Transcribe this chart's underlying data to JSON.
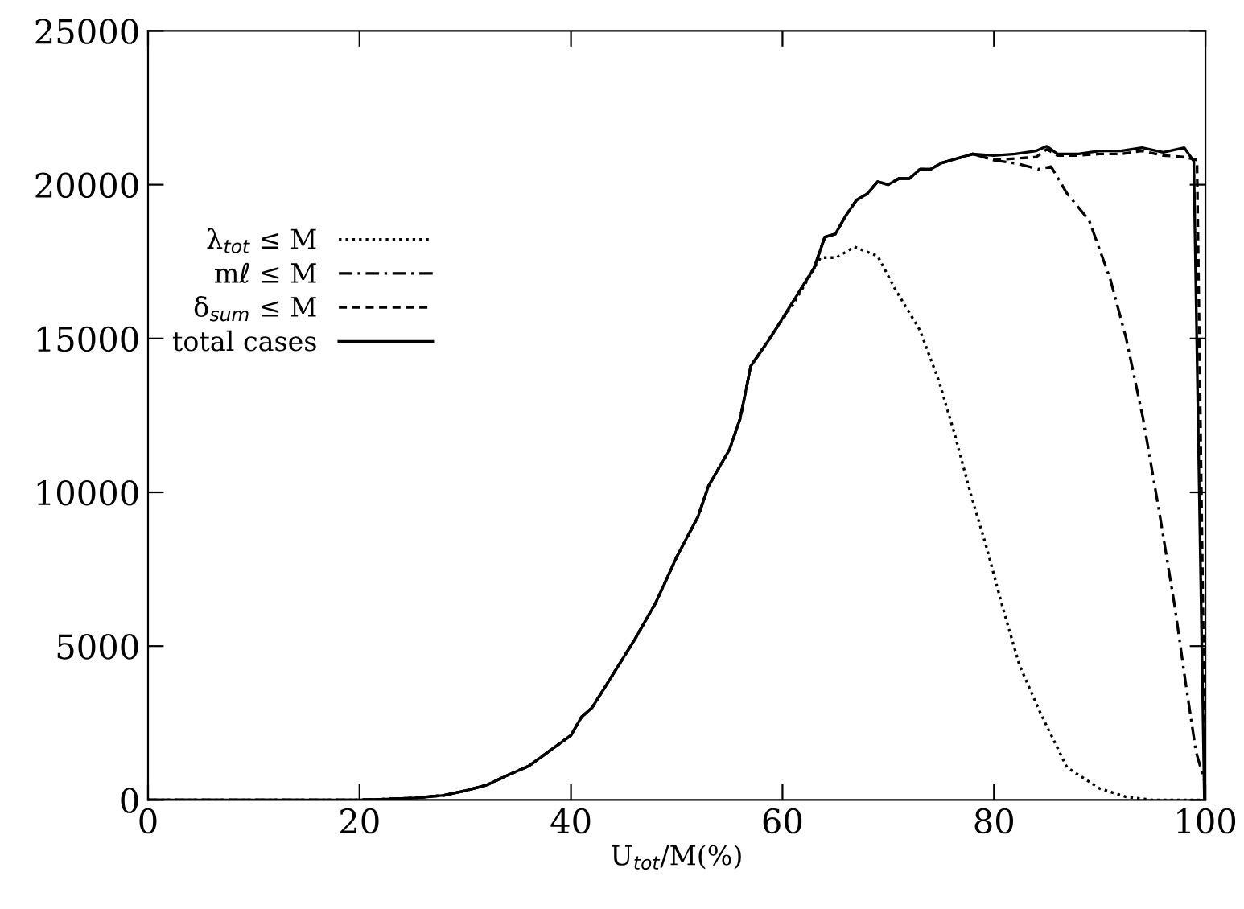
{
  "chart_data": {
    "type": "line",
    "xlabel": "U$_{tot}$/M(%)",
    "xlim": [
      0,
      100
    ],
    "ylim": [
      0,
      25000
    ],
    "xticks": [
      0,
      20,
      40,
      60,
      80,
      100
    ],
    "yticks": [
      0,
      5000,
      10000,
      15000,
      20000,
      25000
    ],
    "grid": false,
    "legend": "left",
    "marker": "none",
    "series": [
      {
        "name": "λ$_{tot}$ ≤ M",
        "color": "#000000",
        "line_style": "dotted",
        "x": [
          0,
          20,
          22,
          25,
          28,
          30,
          32,
          34,
          36,
          38,
          40,
          41,
          42,
          44,
          46,
          48,
          50,
          52,
          53,
          55,
          56,
          57,
          59.1,
          61,
          63.6,
          65.1,
          66.8,
          69.0,
          70.7,
          73.0,
          74.8,
          76.3,
          77.8,
          79.3,
          80.8,
          82.4,
          84.4,
          86.9,
          90.0,
          92.5,
          95,
          100
        ],
        "values": [
          0,
          0,
          20,
          60,
          150,
          300,
          480,
          800,
          1100,
          1600,
          2100,
          2700,
          3000,
          4100,
          5200,
          6400,
          7900,
          9200,
          10200,
          11400,
          12400,
          14100,
          15180,
          16100,
          17630,
          17630,
          17980,
          17680,
          16580,
          15270,
          13610,
          11870,
          9950,
          8210,
          6290,
          4390,
          2820,
          1060,
          370,
          100,
          0,
          0
        ]
      },
      {
        "name": "mℓ ≤ M",
        "color": "#000000",
        "line_style": "dashdot",
        "x": [
          0,
          20,
          22,
          25,
          28,
          30,
          32,
          34,
          36,
          38,
          40,
          41,
          42,
          44,
          46,
          48,
          50,
          52,
          53,
          55,
          56,
          57,
          59,
          61,
          63,
          64,
          65,
          66,
          67,
          68,
          69,
          70,
          71,
          72,
          73,
          74,
          75,
          76,
          77,
          78,
          80,
          82.3,
          84.2,
          85.4,
          86.9,
          89.0,
          91.0,
          92.5,
          94.1,
          95.6,
          97.1,
          98.1,
          99.1,
          100
        ],
        "values": [
          0,
          0,
          20,
          60,
          150,
          300,
          480,
          800,
          1100,
          1600,
          2100,
          2700,
          3000,
          4100,
          5200,
          6400,
          7900,
          9200,
          10200,
          11400,
          12400,
          14100,
          15100,
          16200,
          17300,
          18300,
          18400,
          19000,
          19500,
          19700,
          20100,
          20000,
          20200,
          20200,
          20500,
          20500,
          20700,
          20800,
          20900,
          21000,
          20800,
          20680,
          20500,
          20590,
          19720,
          18840,
          16930,
          15010,
          12400,
          9430,
          6290,
          3870,
          1580,
          500
        ]
      },
      {
        "name": "δ$_{sum}$ ≤ M",
        "color": "#000000",
        "line_style": "dashed",
        "x": [
          0,
          20,
          22,
          25,
          28,
          30,
          32,
          34,
          36,
          38,
          40,
          41,
          42,
          44,
          46,
          48,
          50,
          52,
          53,
          55,
          56,
          57,
          59,
          61,
          63,
          64,
          65,
          66,
          67,
          68,
          69,
          70,
          71,
          72,
          73,
          74,
          75,
          76,
          77,
          78,
          80,
          82,
          84,
          85,
          86,
          88,
          90,
          92,
          94,
          96,
          98,
          99.2,
          100
        ],
        "values": [
          0,
          0,
          20,
          60,
          150,
          300,
          480,
          800,
          1100,
          1600,
          2100,
          2700,
          3000,
          4100,
          5200,
          6400,
          7900,
          9200,
          10200,
          11400,
          12400,
          14100,
          15100,
          16200,
          17300,
          18300,
          18400,
          19000,
          19500,
          19700,
          20100,
          20000,
          20200,
          20200,
          20500,
          20500,
          20700,
          20800,
          20900,
          21000,
          20800,
          20850,
          20900,
          21150,
          20950,
          20950,
          21000,
          21000,
          21100,
          20950,
          20900,
          20800,
          0
        ]
      },
      {
        "name": "total cases",
        "color": "#000000",
        "line_style": "solid",
        "x": [
          0,
          20,
          22,
          25,
          28,
          30,
          32,
          34,
          36,
          38,
          40,
          41,
          42,
          44,
          46,
          48,
          50,
          52,
          53,
          55,
          56,
          57,
          59,
          61,
          63,
          64,
          65,
          66,
          67,
          68,
          69,
          70,
          71,
          72,
          73,
          74,
          75,
          76,
          77,
          78,
          80,
          82,
          84,
          85,
          86,
          88,
          90,
          92,
          94,
          96,
          98,
          98.9,
          99.9
        ],
        "values": [
          0,
          0,
          20,
          60,
          150,
          300,
          480,
          800,
          1100,
          1600,
          2100,
          2700,
          3000,
          4100,
          5200,
          6400,
          7900,
          9200,
          10200,
          11400,
          12400,
          14100,
          15100,
          16200,
          17300,
          18300,
          18400,
          19000,
          19500,
          19700,
          20100,
          20000,
          20200,
          20200,
          20500,
          20500,
          20700,
          20800,
          20900,
          21000,
          20950,
          21000,
          21100,
          21250,
          21000,
          21000,
          21100,
          21100,
          21200,
          21050,
          21200,
          20760,
          0
        ]
      }
    ]
  }
}
